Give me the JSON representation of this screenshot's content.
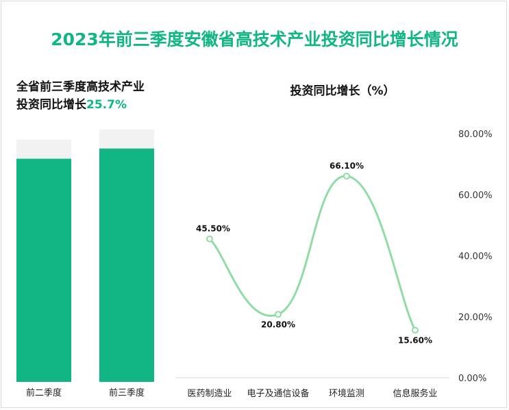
{
  "title": "2023年前三季度安徽省高技术产业投资同比增长情况",
  "left_panel": {
    "heading_line1": "全省前三季度高技术产业",
    "heading_line2_text": "投资同比增长",
    "heading_line2_value": "25.7%"
  },
  "right_panel": {
    "heading": "投资同比增长（%）"
  },
  "chart_data": [
    {
      "type": "bar",
      "title": "全省前三季度高技术产业投资同比增长25.7%",
      "categories": [
        "前二季度",
        "前三季度"
      ],
      "values": [
        0.875,
        0.915
      ],
      "background_values": [
        0.95,
        0.99
      ],
      "colors": {
        "fill": "#12b584",
        "background": "#f2f2f2"
      }
    },
    {
      "type": "line",
      "title": "投资同比增长（%）",
      "categories": [
        "医药制造业",
        "电子及通信设备",
        "环境监测",
        "信息服务业"
      ],
      "values": [
        45.5,
        20.8,
        66.1,
        15.6
      ],
      "labels": [
        "45.50%",
        "20.80%",
        "66.10%",
        "15.60%"
      ],
      "y_ticks": [
        "0.00%",
        "20.00%",
        "40.00%",
        "60.00%",
        "80.00%"
      ],
      "ylim": [
        0,
        80
      ],
      "smooth": true,
      "colors": {
        "line": "#8fdca4",
        "marker_fill": "#ffffff"
      }
    }
  ]
}
